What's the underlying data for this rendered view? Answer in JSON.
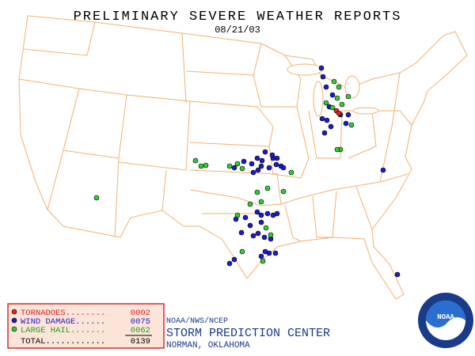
{
  "header": {
    "title": "PRELIMINARY SEVERE WEATHER REPORTS",
    "date": "08/21/03"
  },
  "legend": {
    "rows": [
      {
        "label": "TORNADOES........",
        "count": "0002"
      },
      {
        "label": "WIND DAMAGE......",
        "count": "0075"
      },
      {
        "label": "LARGE HAIL.......",
        "count": "0062"
      }
    ],
    "total": {
      "label": "TOTAL............",
      "count": "0139"
    }
  },
  "footer": {
    "agency": "NOAA/NWS/NCEP",
    "center": "STORM PREDICTION CENTER",
    "location": "NORMAN, OKLAHOMA"
  },
  "logo": {
    "text": "NOAA"
  }
}
